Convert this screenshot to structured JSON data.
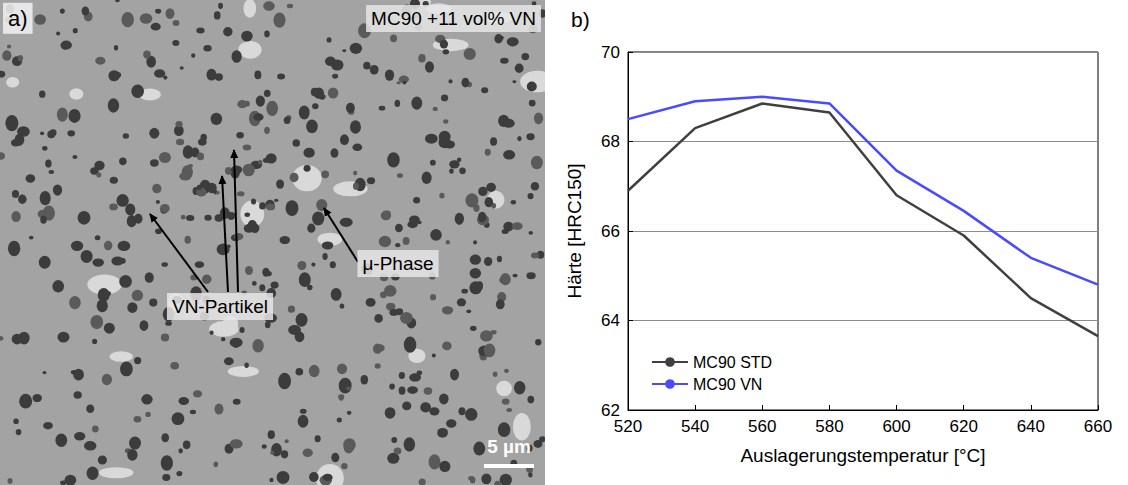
{
  "image": {
    "label": "a)",
    "title": "MC90 +11 vol% VN",
    "annotations": [
      "VN-Partikel",
      "μ-Phase"
    ],
    "scale_bar": "5 µm"
  },
  "chart_data": {
    "type": "line",
    "label": "b)",
    "xlabel": "Auslagerungstemperatur [°C]",
    "ylabel": "Härte [HRC150]",
    "x": [
      520,
      540,
      560,
      580,
      600,
      620,
      640,
      660
    ],
    "series": [
      {
        "name": "MC90 STD",
        "color": "#404040",
        "values": [
          66.9,
          68.3,
          68.85,
          68.65,
          66.8,
          65.9,
          64.5,
          63.65
        ]
      },
      {
        "name": "MC90 VN",
        "color": "#4a4aff",
        "values": [
          68.5,
          68.9,
          69.0,
          68.85,
          67.35,
          66.45,
          65.4,
          64.8
        ]
      }
    ],
    "xlim": [
      520,
      660
    ],
    "xticks": [
      520,
      540,
      560,
      580,
      600,
      620,
      640,
      660
    ],
    "ylim": [
      62,
      70
    ],
    "yticks": [
      62,
      64,
      66,
      68,
      70
    ],
    "grid": true,
    "legend": "lower left"
  }
}
